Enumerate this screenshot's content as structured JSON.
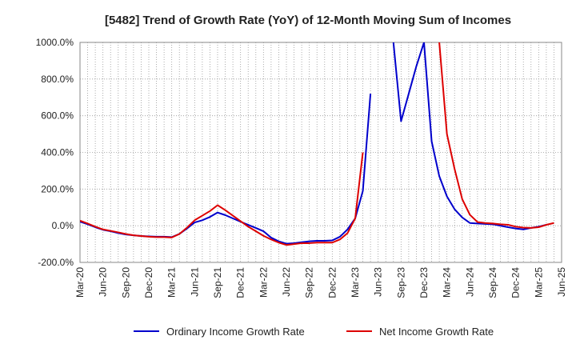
{
  "chart_data": {
    "type": "line",
    "title": "[5482]  Trend of Growth Rate (YoY) of 12-Month Moving Sum of Incomes",
    "xlabel": "",
    "ylabel": "",
    "ylim": [
      -200,
      1000
    ],
    "y_ticks": [
      -200,
      0,
      200,
      400,
      600,
      800,
      1000
    ],
    "y_tick_labels": [
      "-200.0%",
      "0.0%",
      "200.0%",
      "400.0%",
      "600.0%",
      "800.0%",
      "1000.0%"
    ],
    "x_tick_labels": [
      "Mar-20",
      "Jun-20",
      "Sep-20",
      "Dec-20",
      "Mar-21",
      "Jun-21",
      "Sep-21",
      "Dec-21",
      "Mar-22",
      "Jun-22",
      "Sep-22",
      "Dec-22",
      "Mar-23",
      "Jun-23",
      "Sep-23",
      "Dec-23",
      "Mar-24",
      "Jun-24",
      "Sep-24",
      "Dec-24",
      "Mar-25",
      "Jun-25"
    ],
    "months": [
      "2020-03",
      "2020-04",
      "2020-05",
      "2020-06",
      "2020-07",
      "2020-08",
      "2020-09",
      "2020-10",
      "2020-11",
      "2020-12",
      "2021-01",
      "2021-02",
      "2021-03",
      "2021-04",
      "2021-05",
      "2021-06",
      "2021-07",
      "2021-08",
      "2021-09",
      "2021-10",
      "2021-11",
      "2021-12",
      "2022-01",
      "2022-02",
      "2022-03",
      "2022-04",
      "2022-05",
      "2022-06",
      "2022-07",
      "2022-08",
      "2022-09",
      "2022-10",
      "2022-11",
      "2022-12",
      "2023-01",
      "2023-02",
      "2023-03",
      "2023-04",
      "2023-05",
      "2023-06",
      "2023-07",
      "2023-08",
      "2023-09",
      "2023-10",
      "2023-11",
      "2023-12",
      "2024-01",
      "2024-02",
      "2024-03",
      "2024-04",
      "2024-05",
      "2024-06",
      "2024-07",
      "2024-08",
      "2024-09",
      "2024-10",
      "2024-11",
      "2024-12",
      "2025-01",
      "2025-02",
      "2025-03",
      "2025-04",
      "2025-05",
      "2025-06"
    ],
    "grid": true,
    "legend_position": "bottom",
    "series": [
      {
        "name": "Ordinary Income Growth Rate",
        "color": "#0000cc",
        "values": [
          22,
          8,
          -8,
          -22,
          -30,
          -40,
          -48,
          -52,
          -56,
          -58,
          -60,
          -60,
          -62,
          -45,
          -15,
          18,
          30,
          48,
          72,
          58,
          40,
          22,
          5,
          -12,
          -30,
          -65,
          -85,
          -98,
          -95,
          -90,
          -85,
          -82,
          -82,
          -80,
          -60,
          -20,
          40,
          190,
          720,
          null,
          null,
          1000,
          570,
          720,
          870,
          1000,
          460,
          270,
          160,
          90,
          45,
          15,
          12,
          10,
          8,
          0,
          -8,
          -15,
          -20,
          -12,
          -5,
          5,
          null,
          null
        ]
      },
      {
        "name": "Net Income Growth Rate",
        "color": "#dd0000",
        "values": [
          28,
          12,
          -5,
          -20,
          -28,
          -36,
          -45,
          -52,
          -56,
          -60,
          -62,
          -62,
          -64,
          -45,
          -10,
          30,
          55,
          80,
          112,
          85,
          55,
          25,
          -5,
          -30,
          -55,
          -75,
          -92,
          -105,
          -100,
          -95,
          -95,
          -92,
          -92,
          -92,
          -75,
          -40,
          40,
          400,
          null,
          null,
          null,
          null,
          null,
          null,
          null,
          null,
          null,
          1000,
          500,
          310,
          145,
          60,
          20,
          15,
          12,
          8,
          5,
          -5,
          -10,
          -12,
          -8,
          5,
          15,
          null
        ]
      }
    ]
  }
}
